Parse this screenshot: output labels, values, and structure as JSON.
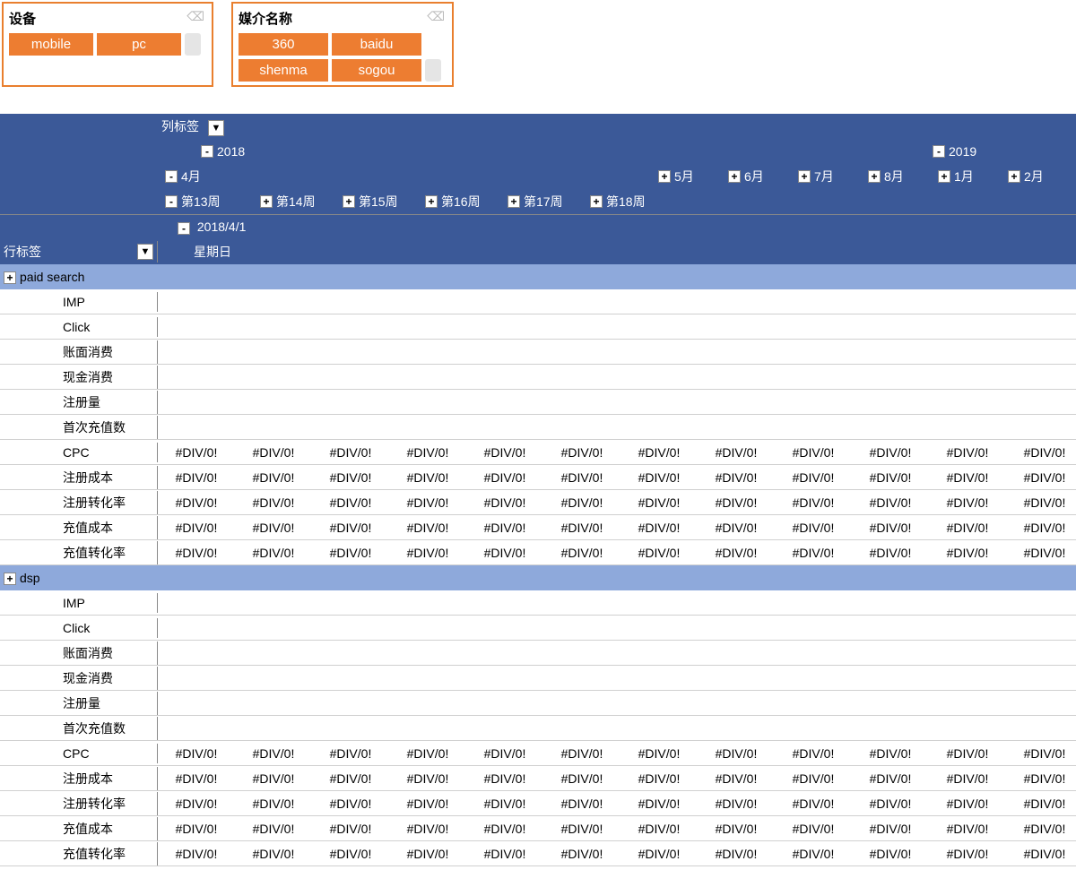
{
  "colors": {
    "slicer_border": "#e97f2e",
    "slicer_item_bg": "#ed7d31",
    "slicer_item_fg": "#ffffff",
    "pivot_header_bg": "#3b5998",
    "pivot_header_fg": "#ffffff",
    "group_row_bg": "#8ea9db",
    "grid_line": "#d0d0d0"
  },
  "slicers": [
    {
      "title": "设备",
      "items": [
        "mobile",
        "pc"
      ]
    },
    {
      "title": "媒介名称",
      "items": [
        "360",
        "baidu",
        "shenma",
        "sogou"
      ]
    }
  ],
  "pivot": {
    "col_label": "列标签",
    "row_label": "行标签",
    "years": [
      {
        "year": "2018",
        "expand": "-"
      },
      {
        "year": "2019",
        "expand": "-"
      }
    ],
    "months_2018": [
      {
        "m": "4月",
        "expand": "-"
      },
      {
        "m": "5月",
        "expand": "+"
      },
      {
        "m": "6月",
        "expand": "+"
      },
      {
        "m": "7月",
        "expand": "+"
      },
      {
        "m": "8月",
        "expand": "+"
      }
    ],
    "months_2019": [
      {
        "m": "1月",
        "expand": "+"
      },
      {
        "m": "2月",
        "expand": "+"
      }
    ],
    "weeks": [
      {
        "w": "第13周",
        "expand": "-"
      },
      {
        "w": "第14周",
        "expand": "+"
      },
      {
        "w": "第15周",
        "expand": "+"
      },
      {
        "w": "第16周",
        "expand": "+"
      },
      {
        "w": "第17周",
        "expand": "+"
      },
      {
        "w": "第18周",
        "expand": "+"
      }
    ],
    "date_row": {
      "date": "2018/4/1",
      "expand": "-"
    },
    "weekday_row": "星期日",
    "groups": [
      {
        "name": "paid search",
        "expand": "+"
      },
      {
        "name": "dsp",
        "expand": "+"
      }
    ],
    "metrics": [
      "IMP",
      "Click",
      "账面消费",
      "现金消费",
      "注册量",
      "首次充值数",
      "CPC",
      "注册成本",
      "注册转化率",
      "充值成本",
      "充值转化率"
    ],
    "error_metrics": [
      "CPC",
      "注册成本",
      "注册转化率",
      "充值成本",
      "充值转化率"
    ],
    "error_value": "#DIV/0!",
    "data_col_count": 12
  }
}
